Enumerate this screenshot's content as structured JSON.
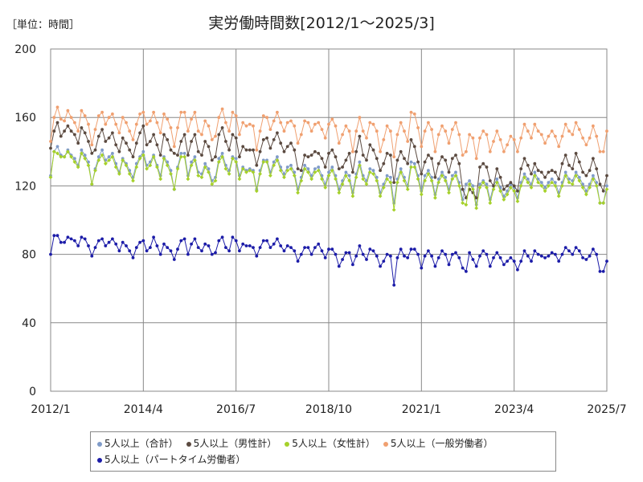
{
  "unit_label": "［単位：時間］",
  "chart_data": {
    "type": "line",
    "title": "実労働時間数[2012/1～2025/3]",
    "x_start": "2012/1",
    "x_end": "2025/3",
    "x_ticks": [
      "2012/1",
      "2014/4",
      "2016/7",
      "2018/10",
      "2021/1",
      "2023/4",
      "2025/7"
    ],
    "ylim": [
      0,
      200
    ],
    "y_ticks": [
      0,
      40,
      80,
      120,
      160,
      200
    ],
    "grid": true,
    "legend_position": "bottom",
    "series": [
      {
        "name": "5人以上（合計）",
        "color": "#7f9bc8",
        "values": [
          126,
          140,
          143,
          138,
          137,
          141,
          138,
          136,
          132,
          141,
          138,
          134,
          121,
          130,
          137,
          141,
          135,
          137,
          139,
          133,
          128,
          136,
          133,
          129,
          125,
          133,
          137,
          140,
          132,
          134,
          138,
          132,
          126,
          137,
          134,
          129,
          118,
          131,
          139,
          139,
          126,
          134,
          137,
          128,
          127,
          133,
          130,
          123,
          125,
          136,
          139,
          132,
          129,
          137,
          136,
          126,
          131,
          129,
          130,
          129,
          118,
          129,
          135,
          135,
          128,
          134,
          137,
          131,
          127,
          131,
          132,
          128,
          118,
          125,
          132,
          130,
          126,
          130,
          131,
          126,
          121,
          128,
          131,
          126,
          118,
          123,
          128,
          126,
          116,
          127,
          134,
          126,
          123,
          130,
          129,
          125,
          116,
          121,
          126,
          125,
          110,
          124,
          130,
          125,
          120,
          134,
          133,
          126,
          117,
          126,
          129,
          125,
          115,
          124,
          128,
          125,
          118,
          126,
          128,
          122,
          112,
          121,
          123,
          120,
          109,
          121,
          123,
          121,
          112,
          120,
          124,
          119,
          114,
          117,
          121,
          119,
          113,
          122,
          127,
          124,
          121,
          128,
          124,
          122,
          119,
          122,
          124,
          122,
          116,
          122,
          128,
          124,
          123,
          128,
          125,
          121,
          117,
          121,
          126,
          122,
          110,
          110,
          120
        ],
        "shape": "circle"
      },
      {
        "name": "5人以上（男性計）",
        "color": "#5b4a40",
        "values": [
          142,
          152,
          157,
          149,
          152,
          155,
          152,
          150,
          145,
          154,
          151,
          146,
          139,
          141,
          149,
          153,
          146,
          148,
          151,
          144,
          140,
          148,
          145,
          141,
          137,
          145,
          151,
          155,
          144,
          146,
          150,
          144,
          138,
          150,
          147,
          141,
          139,
          138,
          146,
          150,
          138,
          146,
          150,
          140,
          138,
          146,
          143,
          135,
          137,
          150,
          154,
          146,
          141,
          150,
          148,
          137,
          143,
          141,
          141,
          141,
          132,
          140,
          147,
          148,
          142,
          147,
          151,
          145,
          140,
          143,
          145,
          141,
          130,
          129,
          138,
          137,
          138,
          140,
          139,
          136,
          131,
          139,
          141,
          137,
          130,
          131,
          135,
          139,
          128,
          140,
          149,
          138,
          135,
          144,
          141,
          136,
          129,
          133,
          139,
          138,
          122,
          135,
          140,
          136,
          133,
          147,
          143,
          134,
          127,
          134,
          138,
          136,
          125,
          133,
          137,
          135,
          128,
          136,
          138,
          133,
          118,
          113,
          118,
          116,
          113,
          131,
          133,
          131,
          123,
          120,
          130,
          125,
          118,
          120,
          122,
          120,
          117,
          130,
          136,
          132,
          127,
          133,
          129,
          128,
          125,
          128,
          129,
          128,
          124,
          133,
          138,
          132,
          130,
          139,
          134,
          128,
          126,
          129,
          136,
          130,
          121,
          117,
          126
        ],
        "shape": "circle"
      },
      {
        "name": "5人以上（女性計）",
        "color": "#a6d12a",
        "values": [
          125,
          140,
          139,
          137,
          137,
          140,
          137,
          134,
          131,
          139,
          136,
          132,
          121,
          129,
          135,
          138,
          133,
          135,
          137,
          131,
          127,
          135,
          132,
          127,
          123,
          131,
          136,
          138,
          130,
          132,
          137,
          131,
          124,
          136,
          132,
          127,
          118,
          130,
          137,
          137,
          124,
          132,
          135,
          126,
          125,
          131,
          128,
          121,
          123,
          134,
          137,
          130,
          127,
          136,
          134,
          124,
          130,
          128,
          129,
          128,
          117,
          127,
          134,
          134,
          126,
          132,
          135,
          129,
          125,
          129,
          130,
          126,
          116,
          123,
          130,
          128,
          124,
          128,
          129,
          124,
          119,
          126,
          129,
          124,
          116,
          121,
          126,
          123,
          114,
          125,
          132,
          124,
          121,
          128,
          127,
          123,
          114,
          119,
          124,
          122,
          106,
          122,
          128,
          123,
          118,
          131,
          131,
          124,
          115,
          123,
          127,
          123,
          113,
          122,
          126,
          123,
          116,
          124,
          126,
          120,
          110,
          109,
          121,
          118,
          107,
          119,
          122,
          119,
          110,
          118,
          122,
          117,
          112,
          115,
          119,
          117,
          111,
          120,
          125,
          122,
          119,
          126,
          122,
          120,
          117,
          120,
          122,
          120,
          114,
          120,
          126,
          122,
          121,
          126,
          123,
          119,
          115,
          119,
          124,
          120,
          110,
          110,
          118
        ],
        "shape": "diamond"
      },
      {
        "name": "5人以上（一般労働者）",
        "color": "#f0a070",
        "values": [
          146,
          160,
          166,
          159,
          158,
          164,
          160,
          157,
          152,
          164,
          161,
          156,
          144,
          153,
          161,
          163,
          156,
          160,
          162,
          156,
          151,
          160,
          157,
          152,
          147,
          156,
          162,
          163,
          156,
          158,
          163,
          157,
          151,
          162,
          159,
          154,
          143,
          154,
          163,
          163,
          152,
          159,
          163,
          152,
          150,
          158,
          155,
          147,
          149,
          160,
          165,
          157,
          152,
          163,
          161,
          150,
          157,
          155,
          156,
          155,
          141,
          152,
          161,
          160,
          153,
          158,
          163,
          157,
          152,
          157,
          158,
          155,
          145,
          150,
          158,
          157,
          152,
          156,
          157,
          153,
          148,
          156,
          159,
          155,
          145,
          150,
          155,
          152,
          140,
          152,
          160,
          152,
          148,
          157,
          156,
          152,
          140,
          147,
          155,
          152,
          137,
          150,
          157,
          152,
          146,
          163,
          162,
          154,
          143,
          152,
          157,
          153,
          140,
          150,
          155,
          152,
          145,
          153,
          157,
          150,
          138,
          140,
          150,
          148,
          136,
          148,
          152,
          150,
          140,
          146,
          152,
          147,
          140,
          144,
          149,
          147,
          140,
          148,
          156,
          152,
          148,
          156,
          152,
          150,
          145,
          149,
          152,
          149,
          143,
          149,
          156,
          152,
          150,
          157,
          153,
          148,
          144,
          148,
          155,
          149,
          140,
          140,
          152
        ],
        "shape": "circle"
      },
      {
        "name": "5人以上（パートタイム労働者）",
        "color": "#1c1ca8",
        "values": [
          80,
          91,
          91,
          87,
          87,
          90,
          89,
          88,
          85,
          90,
          89,
          85,
          79,
          84,
          88,
          89,
          85,
          87,
          89,
          86,
          82,
          87,
          85,
          82,
          78,
          84,
          87,
          88,
          82,
          84,
          90,
          85,
          80,
          86,
          84,
          82,
          77,
          83,
          88,
          89,
          80,
          86,
          89,
          84,
          82,
          86,
          85,
          80,
          81,
          88,
          90,
          84,
          82,
          90,
          88,
          82,
          86,
          85,
          85,
          84,
          79,
          84,
          88,
          88,
          84,
          86,
          89,
          85,
          82,
          85,
          84,
          82,
          76,
          80,
          84,
          84,
          80,
          84,
          86,
          82,
          78,
          83,
          83,
          80,
          73,
          77,
          81,
          81,
          74,
          79,
          85,
          80,
          77,
          83,
          82,
          79,
          73,
          76,
          80,
          79,
          62,
          78,
          83,
          79,
          78,
          83,
          83,
          80,
          72,
          79,
          82,
          79,
          73,
          78,
          82,
          80,
          74,
          80,
          81,
          78,
          72,
          70,
          81,
          77,
          73,
          79,
          82,
          80,
          73,
          78,
          81,
          78,
          74,
          76,
          78,
          76,
          71,
          76,
          82,
          79,
          76,
          82,
          80,
          79,
          78,
          79,
          81,
          80,
          76,
          80,
          84,
          82,
          80,
          84,
          82,
          78,
          77,
          79,
          83,
          80,
          70,
          70,
          76
        ],
        "shape": "circle"
      }
    ]
  }
}
